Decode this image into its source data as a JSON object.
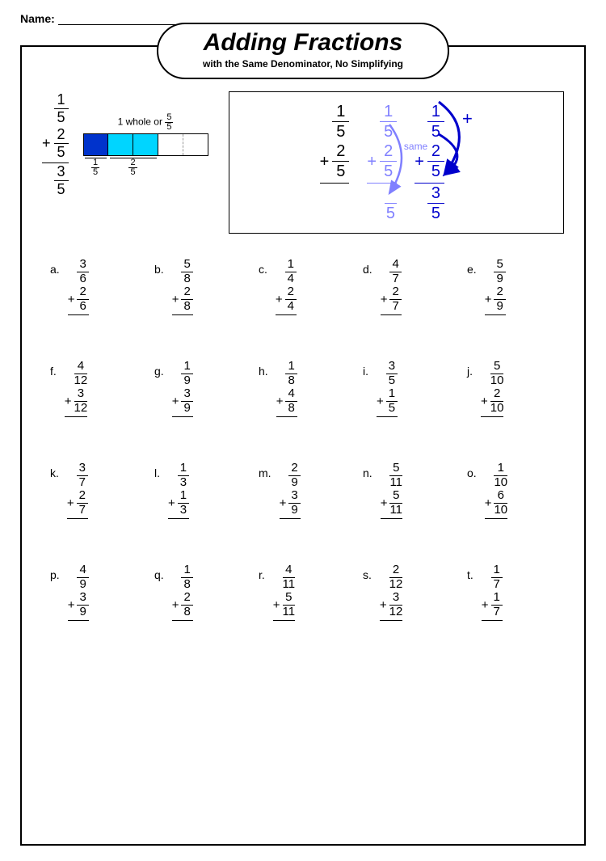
{
  "header": {
    "name_label": "Name:"
  },
  "title": {
    "main": "Adding Fractions",
    "sub": "with the Same Denominator, No Simplifying"
  },
  "example_left": {
    "f1": {
      "n": "1",
      "d": "5"
    },
    "f2": {
      "n": "2",
      "d": "5"
    },
    "result": {
      "n": "3",
      "d": "5"
    },
    "bar_label": "1 whole or",
    "bar_frac": {
      "n": "5",
      "d": "5"
    },
    "colors": [
      "#0033cc",
      "#00d5ff",
      "#00d5ff",
      "#ffffff",
      "#ffffff"
    ],
    "dashed_index": 3,
    "bottom_labels": [
      {
        "n": "1",
        "d": "5",
        "span": 1
      },
      {
        "n": "2",
        "d": "5",
        "span": 2
      }
    ]
  },
  "example_right": {
    "cols": [
      {
        "color": "black",
        "f1": {
          "n": "1",
          "d": "5"
        },
        "f2": {
          "n": "2",
          "d": "5"
        },
        "result": null
      },
      {
        "color": "lblue",
        "f1": {
          "n": "1",
          "d": "5"
        },
        "f2": {
          "n": "2",
          "d": "5"
        },
        "result": {
          "n": "",
          "d": "5"
        },
        "same_label": "same"
      },
      {
        "color": "blue",
        "f1": {
          "n": "1",
          "d": "5"
        },
        "f2": {
          "n": "2",
          "d": "5"
        },
        "result": {
          "n": "3",
          "d": "5"
        }
      }
    ],
    "plus_right": "+"
  },
  "problems": [
    [
      {
        "l": "a.",
        "f1": {
          "n": "3",
          "d": "6"
        },
        "f2": {
          "n": "2",
          "d": "6"
        }
      },
      {
        "l": "b.",
        "f1": {
          "n": "5",
          "d": "8"
        },
        "f2": {
          "n": "2",
          "d": "8"
        }
      },
      {
        "l": "c.",
        "f1": {
          "n": "1",
          "d": "4"
        },
        "f2": {
          "n": "2",
          "d": "4"
        }
      },
      {
        "l": "d.",
        "f1": {
          "n": "4",
          "d": "7"
        },
        "f2": {
          "n": "2",
          "d": "7"
        }
      },
      {
        "l": "e.",
        "f1": {
          "n": "5",
          "d": "9"
        },
        "f2": {
          "n": "2",
          "d": "9"
        }
      }
    ],
    [
      {
        "l": "f.",
        "f1": {
          "n": "4",
          "d": "12"
        },
        "f2": {
          "n": "3",
          "d": "12"
        }
      },
      {
        "l": "g.",
        "f1": {
          "n": "1",
          "d": "9"
        },
        "f2": {
          "n": "3",
          "d": "9"
        }
      },
      {
        "l": "h.",
        "f1": {
          "n": "1",
          "d": "8"
        },
        "f2": {
          "n": "4",
          "d": "8"
        }
      },
      {
        "l": "i.",
        "f1": {
          "n": "3",
          "d": "5"
        },
        "f2": {
          "n": "1",
          "d": "5"
        }
      },
      {
        "l": "j.",
        "f1": {
          "n": "5",
          "d": "10"
        },
        "f2": {
          "n": "2",
          "d": "10"
        }
      }
    ],
    [
      {
        "l": "k.",
        "f1": {
          "n": "3",
          "d": "7"
        },
        "f2": {
          "n": "2",
          "d": "7"
        }
      },
      {
        "l": "l.",
        "f1": {
          "n": "1",
          "d": "3"
        },
        "f2": {
          "n": "1",
          "d": "3"
        }
      },
      {
        "l": "m.",
        "f1": {
          "n": "2",
          "d": "9"
        },
        "f2": {
          "n": "3",
          "d": "9"
        }
      },
      {
        "l": "n.",
        "f1": {
          "n": "5",
          "d": "11"
        },
        "f2": {
          "n": "5",
          "d": "11"
        }
      },
      {
        "l": "o.",
        "f1": {
          "n": "1",
          "d": "10"
        },
        "f2": {
          "n": "6",
          "d": "10"
        }
      }
    ],
    [
      {
        "l": "p.",
        "f1": {
          "n": "4",
          "d": "9"
        },
        "f2": {
          "n": "3",
          "d": "9"
        }
      },
      {
        "l": "q.",
        "f1": {
          "n": "1",
          "d": "8"
        },
        "f2": {
          "n": "2",
          "d": "8"
        }
      },
      {
        "l": "r.",
        "f1": {
          "n": "4",
          "d": "11"
        },
        "f2": {
          "n": "5",
          "d": "11"
        }
      },
      {
        "l": "s.",
        "f1": {
          "n": "2",
          "d": "12"
        },
        "f2": {
          "n": "3",
          "d": "12"
        }
      },
      {
        "l": "t.",
        "f1": {
          "n": "1",
          "d": "7"
        },
        "f2": {
          "n": "1",
          "d": "7"
        }
      }
    ]
  ]
}
